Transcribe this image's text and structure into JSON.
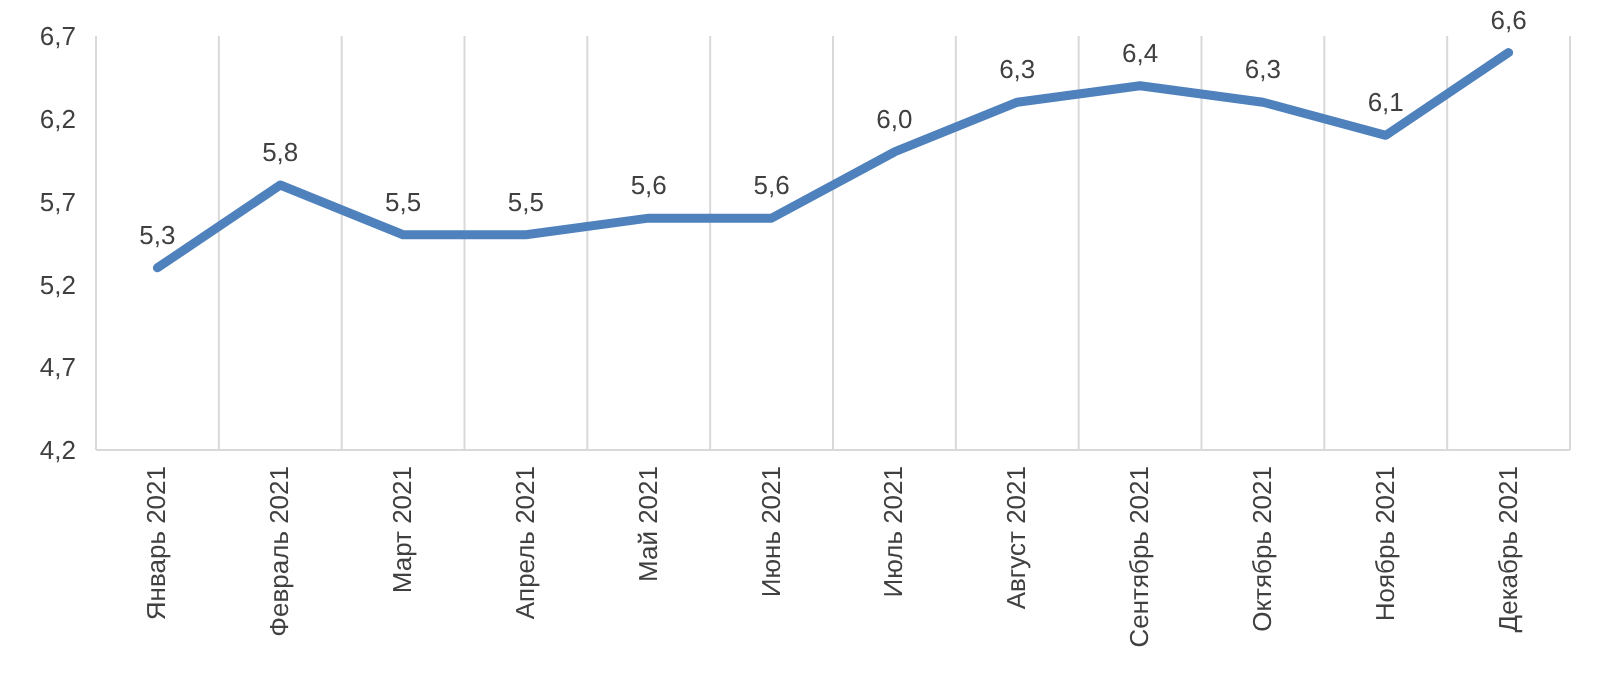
{
  "chart_data": {
    "type": "line",
    "categories": [
      "Январь 2021",
      "Февраль 2021",
      "Март 2021",
      "Апрель 2021",
      "Май 2021",
      "Июнь 2021",
      "Июль 2021",
      "Август 2021",
      "Сентябрь 2021",
      "Октябрь 2021",
      "Ноябрь 2021",
      "Декабрь 2021"
    ],
    "series": [
      {
        "color": "#4f81bd",
        "values": [
          5.3,
          5.8,
          5.5,
          5.5,
          5.6,
          5.6,
          6.0,
          6.3,
          6.4,
          6.3,
          6.1,
          6.6
        ],
        "value_labels": [
          "5,3",
          "5,8",
          "5,5",
          "5,5",
          "5,6",
          "5,6",
          "6,0",
          "6,3",
          "6,4",
          "6,3",
          "6,1",
          "6,6"
        ]
      }
    ],
    "ylim": [
      4.2,
      6.7
    ],
    "yticks": [
      {
        "value": 4.2,
        "label": "4,2"
      },
      {
        "value": 4.7,
        "label": "4,7"
      },
      {
        "value": 5.2,
        "label": "5,2"
      },
      {
        "value": 5.7,
        "label": "5,7"
      },
      {
        "value": 6.2,
        "label": "6,2"
      },
      {
        "value": 6.7,
        "label": "6,7"
      }
    ],
    "grid": "x",
    "marker": "none",
    "line_style": "solid"
  }
}
